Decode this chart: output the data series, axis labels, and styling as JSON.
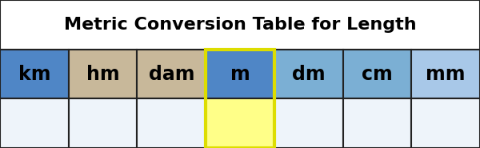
{
  "title": "Metric Conversion Table for Length",
  "headers": [
    "km",
    "hm",
    "dam",
    "m",
    "dm",
    "cm",
    "mm"
  ],
  "header_colors": [
    "#4F86C6",
    "#C8B89A",
    "#C8B89A",
    "#4F86C6",
    "#7BAFD4",
    "#7BAFD4",
    "#A8C8E8"
  ],
  "body_cell_color": "#EEF4FA",
  "title_bg": "#FFFFFF",
  "highlight_col": 3,
  "highlight_header_color": "#4F86C6",
  "highlight_body_color": "#FFFF88",
  "highlight_border_color": "#DDDD00",
  "border_color": "#222222",
  "outer_border_color": "#000000",
  "outer_bg": "#FFFFFF",
  "title_fontsize": 16,
  "header_fontsize": 17,
  "figwidth": 6.0,
  "figheight": 1.85,
  "dpi": 100
}
